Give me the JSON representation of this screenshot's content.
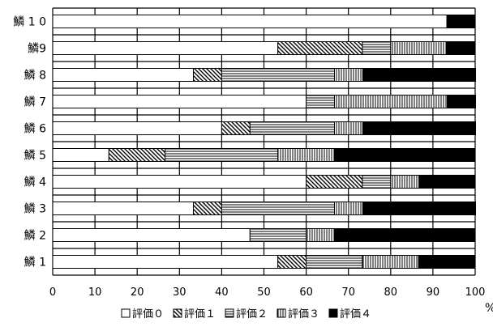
{
  "chart_data": {
    "type": "bar",
    "orientation": "horizontal",
    "stacked": true,
    "categories": [
      "鱗1",
      "鱗2",
      "鱗3",
      "鱗4",
      "鱗5",
      "鱗6",
      "鱗7",
      "鱗8",
      "鱗9",
      "鱗10"
    ],
    "category_labels": [
      "鱗 1",
      "鱗 2",
      "鱗 3",
      "鱗 4",
      "鱗 5",
      "鱗 6",
      "鱗 7",
      "鱗 8",
      "鱗9",
      "鱗 1 0"
    ],
    "series": [
      {
        "name": "評価０",
        "pattern": "none",
        "values": [
          53.3,
          46.7,
          33.3,
          60.0,
          13.3,
          40.0,
          60.0,
          33.3,
          53.3,
          93.3
        ]
      },
      {
        "name": "評価１",
        "pattern": "diagonal",
        "values": [
          6.7,
          0.0,
          6.7,
          13.3,
          13.3,
          6.7,
          0.0,
          6.7,
          20.0,
          0.0
        ]
      },
      {
        "name": "評価２",
        "pattern": "horizontal",
        "values": [
          13.3,
          13.3,
          26.7,
          6.7,
          26.7,
          20.0,
          6.7,
          26.7,
          6.7,
          0.0
        ]
      },
      {
        "name": "評価３",
        "pattern": "vertical",
        "values": [
          13.3,
          6.7,
          6.7,
          6.7,
          13.3,
          6.7,
          26.7,
          6.7,
          13.3,
          0.0
        ]
      },
      {
        "name": "評価４",
        "pattern": "solid",
        "values": [
          13.3,
          33.3,
          26.7,
          13.3,
          33.3,
          26.7,
          6.7,
          26.7,
          6.7,
          6.7
        ]
      }
    ],
    "legend_labels": [
      "評価０",
      "評価１",
      "評価２",
      "評価３",
      "評価４"
    ],
    "x_ticks": [
      "0",
      "10",
      "20",
      "30",
      "40",
      "50",
      "60",
      "70",
      "80",
      "90",
      "100"
    ],
    "xlim": [
      0,
      100
    ],
    "x_unit": "%",
    "grid": true,
    "legend_position": "bottom"
  }
}
